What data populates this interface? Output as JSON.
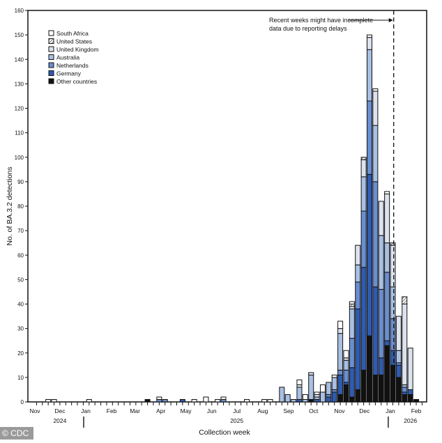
{
  "watermark": "© CDC",
  "chart_data": {
    "type": "bar",
    "stacked": true,
    "xlabel": "Collection week",
    "ylabel": "No. of BA.3.2 detections",
    "ylim": [
      0,
      160
    ],
    "yticks": [
      0,
      10,
      20,
      30,
      40,
      50,
      60,
      70,
      80,
      90,
      100,
      110,
      120,
      130,
      140,
      150,
      160
    ],
    "grid": false,
    "legend_position": "top-left",
    "month_labels": [
      {
        "date": "2024-11-01",
        "label": "Nov"
      },
      {
        "date": "2024-12-01",
        "label": "Dec"
      },
      {
        "date": "2025-01-01",
        "label": "Jan"
      },
      {
        "date": "2025-02-01",
        "label": "Feb"
      },
      {
        "date": "2025-03-01",
        "label": "Mar"
      },
      {
        "date": "2025-04-01",
        "label": "Apr"
      },
      {
        "date": "2025-05-01",
        "label": "May"
      },
      {
        "date": "2025-06-01",
        "label": "Jun"
      },
      {
        "date": "2025-07-01",
        "label": "Jul"
      },
      {
        "date": "2025-08-01",
        "label": "Aug"
      },
      {
        "date": "2025-09-01",
        "label": "Sep"
      },
      {
        "date": "2025-10-01",
        "label": "Oct"
      },
      {
        "date": "2025-11-01",
        "label": "Nov"
      },
      {
        "date": "2025-12-01",
        "label": "Dec"
      },
      {
        "date": "2026-01-01",
        "label": "Jan"
      },
      {
        "date": "2026-02-01",
        "label": "Feb"
      }
    ],
    "year_labels": [
      {
        "date": "2024-12-01",
        "label": "2024"
      },
      {
        "date": "2025-07-01",
        "label": "2025"
      },
      {
        "date": "2026-01-25",
        "label": "2026"
      }
    ],
    "annotation": {
      "lines": [
        "Recent weeks might have incomplete",
        "data due to reporting delays"
      ],
      "reference_date": "2026-01-05"
    },
    "series": [
      {
        "name": "Other countries",
        "color": "#111111"
      },
      {
        "name": "Germany",
        "color": "#2f5bb0"
      },
      {
        "name": "Netherlands",
        "color": "#6a8fd0"
      },
      {
        "name": "Australia",
        "color": "#a9c0e3"
      },
      {
        "name": "United Kingdom",
        "color": "#dde3ee"
      },
      {
        "name": "United States",
        "color": "#ffffff",
        "pattern": "hatched"
      },
      {
        "name": "South Africa",
        "color": "#ffffff"
      }
    ],
    "legend_order": [
      "South Africa",
      "United States",
      "United Kingdom",
      "Australia",
      "Netherlands",
      "Germany",
      "Other countries"
    ],
    "weeks": [
      {
        "week": "2024-11-17",
        "values": [
          0,
          0,
          0,
          0,
          0,
          0,
          1
        ]
      },
      {
        "week": "2024-11-24",
        "values": [
          0,
          0,
          0,
          0,
          0,
          0,
          1
        ]
      },
      {
        "week": "2025-01-05",
        "values": [
          0,
          0,
          0,
          0,
          0,
          0,
          1
        ]
      },
      {
        "week": "2025-03-16",
        "values": [
          1,
          0,
          0,
          0,
          0,
          0,
          0
        ]
      },
      {
        "week": "2025-03-30",
        "values": [
          0,
          0,
          1,
          0,
          0,
          0,
          1
        ]
      },
      {
        "week": "2025-04-06",
        "values": [
          0,
          0,
          1,
          0,
          0,
          0,
          0
        ]
      },
      {
        "week": "2025-04-27",
        "values": [
          0,
          1,
          0,
          0,
          0,
          0,
          0
        ]
      },
      {
        "week": "2025-05-11",
        "values": [
          0,
          0,
          0,
          0,
          0,
          0,
          1
        ]
      },
      {
        "week": "2025-05-25",
        "values": [
          0,
          0,
          0,
          0,
          0,
          0,
          2
        ]
      },
      {
        "week": "2025-06-08",
        "values": [
          0,
          0,
          0,
          0,
          0,
          0,
          1
        ]
      },
      {
        "week": "2025-06-15",
        "values": [
          0,
          0,
          1,
          0,
          0,
          0,
          1
        ]
      },
      {
        "week": "2025-07-13",
        "values": [
          0,
          0,
          0,
          0,
          0,
          0,
          1
        ]
      },
      {
        "week": "2025-08-03",
        "values": [
          0,
          0,
          0,
          0,
          0,
          0,
          1
        ]
      },
      {
        "week": "2025-08-10",
        "values": [
          0,
          0,
          0,
          0,
          0,
          0,
          1
        ]
      },
      {
        "week": "2025-08-24",
        "values": [
          0,
          0,
          0,
          6,
          0,
          0,
          0
        ]
      },
      {
        "week": "2025-08-31",
        "values": [
          0,
          0,
          0,
          3,
          0,
          0,
          0
        ]
      },
      {
        "week": "2025-09-07",
        "values": [
          0,
          0,
          0,
          1,
          0,
          0,
          0
        ]
      },
      {
        "week": "2025-09-14",
        "values": [
          0,
          1,
          0,
          5,
          1,
          0,
          2
        ]
      },
      {
        "week": "2025-09-21",
        "values": [
          0,
          0,
          0,
          1,
          0,
          0,
          2
        ]
      },
      {
        "week": "2025-09-28",
        "values": [
          1,
          0,
          0,
          10,
          1,
          0,
          0
        ]
      },
      {
        "week": "2025-10-05",
        "values": [
          0,
          1,
          0,
          1,
          1,
          0,
          1
        ]
      },
      {
        "week": "2025-10-12",
        "values": [
          0,
          0,
          0,
          4,
          0,
          0,
          3
        ]
      },
      {
        "week": "2025-10-19",
        "values": [
          0,
          2,
          1,
          5,
          0,
          0,
          0
        ]
      },
      {
        "week": "2025-10-26",
        "values": [
          0,
          4,
          1,
          5,
          0,
          0,
          1
        ]
      },
      {
        "week": "2025-11-02",
        "values": [
          3,
          8,
          2,
          15,
          2,
          0,
          3
        ]
      },
      {
        "week": "2025-11-09",
        "values": [
          7,
          1,
          5,
          4,
          1,
          0,
          3
        ]
      },
      {
        "week": "2025-11-16",
        "values": [
          2,
          12,
          12,
          12,
          1,
          1,
          1
        ]
      },
      {
        "week": "2025-11-23",
        "values": [
          5,
          33,
          11,
          7,
          8,
          0,
          0
        ]
      },
      {
        "week": "2025-11-30",
        "values": [
          13,
          42,
          23,
          14,
          7,
          1,
          0
        ]
      },
      {
        "week": "2025-12-07",
        "values": [
          27,
          66,
          30,
          21,
          5,
          0,
          1
        ]
      },
      {
        "week": "2025-12-14",
        "values": [
          11,
          36,
          43,
          23,
          14,
          0,
          1
        ]
      },
      {
        "week": "2025-12-21",
        "values": [
          11,
          7,
          28,
          22,
          14,
          0,
          0
        ]
      },
      {
        "week": "2025-12-28",
        "values": [
          23,
          2,
          28,
          12,
          20,
          0,
          1
        ]
      },
      {
        "week": "2026-01-04",
        "values": [
          15,
          6,
          13,
          13,
          17,
          1,
          0
        ]
      },
      {
        "week": "2026-01-11",
        "values": [
          10,
          5,
          1,
          5,
          14,
          0,
          0
        ]
      },
      {
        "week": "2026-01-18",
        "values": [
          3,
          1,
          2,
          1,
          33,
          3,
          0
        ]
      },
      {
        "week": "2026-01-25",
        "values": [
          3,
          2,
          0,
          0,
          17,
          0,
          0
        ]
      },
      {
        "week": "2026-02-01",
        "values": [
          1,
          0,
          0,
          0,
          0,
          0,
          0
        ]
      }
    ]
  }
}
